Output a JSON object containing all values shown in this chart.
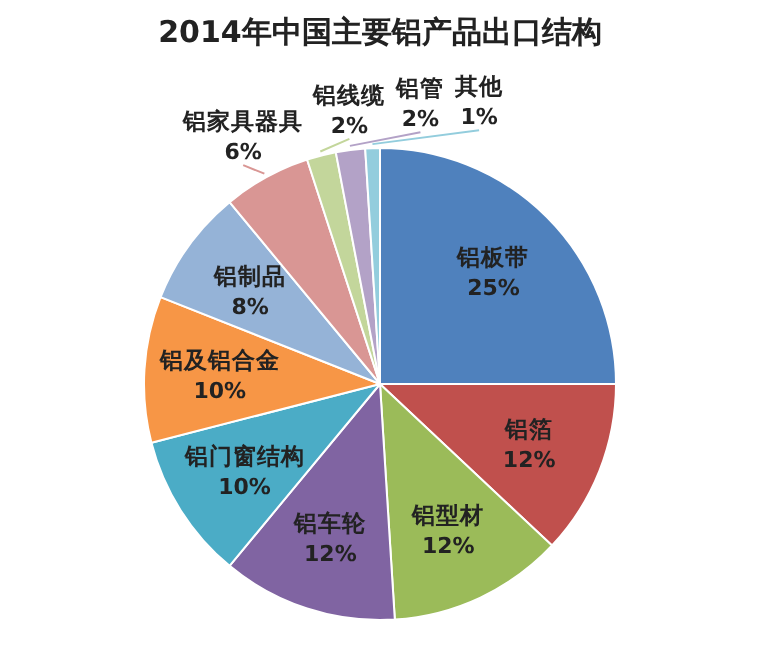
{
  "chart_data": {
    "type": "pie",
    "title": "2014年中国主要铝产品出口结构",
    "categories": [
      "铝板带",
      "铝箔",
      "铝型材",
      "铝车轮",
      "铝门窗结构",
      "铝及铝合金",
      "铝制品",
      "铝家具器具",
      "铝线缆",
      "铝管",
      "其他"
    ],
    "values": [
      25,
      12,
      12,
      12,
      10,
      10,
      8,
      6,
      2,
      2,
      1
    ],
    "colors": [
      "#4f81bd",
      "#c0504d",
      "#9bbb59",
      "#8064a2",
      "#4bacc6",
      "#f79646",
      "#95b3d7",
      "#d99694",
      "#c3d69b",
      "#b3a2c7",
      "#93cddd"
    ],
    "value_labels": [
      "25%",
      "12%",
      "12%",
      "12%",
      "10%",
      "10%",
      "8%",
      "6%",
      "2%",
      "2%",
      "1%"
    ]
  }
}
